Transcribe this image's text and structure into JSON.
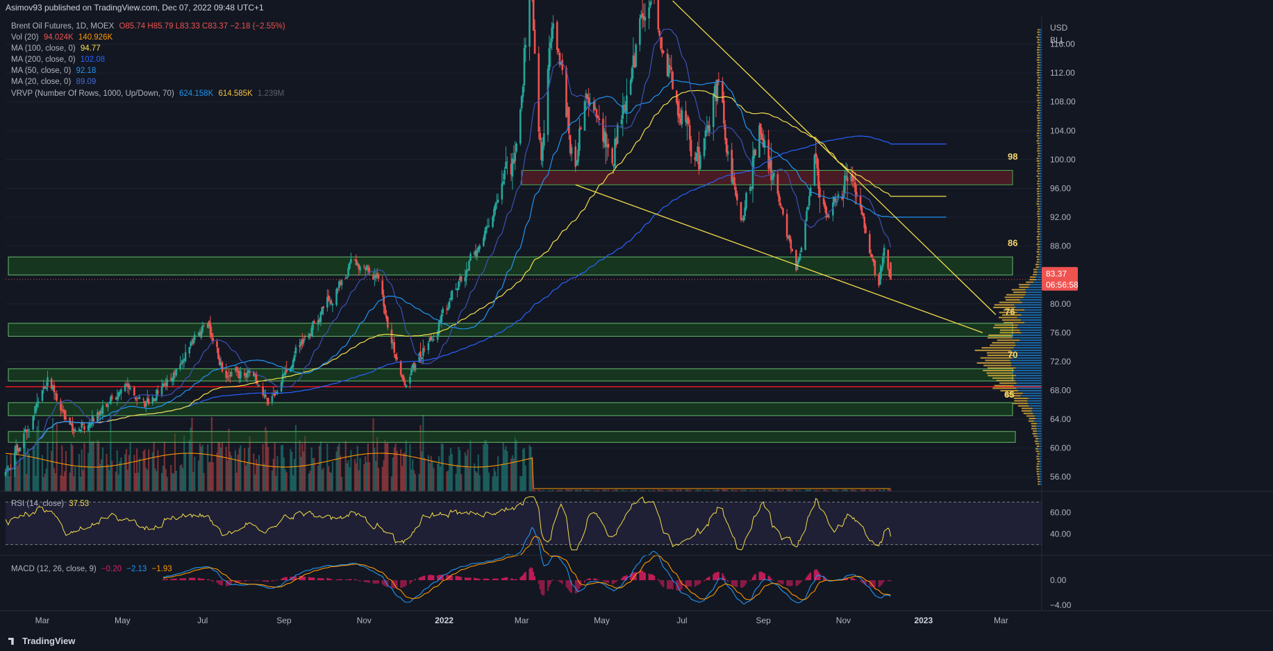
{
  "header": {
    "published_text": "Asimov93 published on TradingView.com, Dec 07, 2022 09:48 UTC+1"
  },
  "legend": {
    "symbol": "Brent Oil Futures, 1D, MOEX",
    "ohlc": "O85.74  H85.79  L83.33  C83.37  −2.18 (−2.55%)",
    "vol_label": "Vol (20)",
    "vol_values": [
      "94.024K",
      "140.926K"
    ],
    "ma100_label": "MA (100, close, 0)",
    "ma100_value": "94.77",
    "ma200_label": "MA (200, close, 0)",
    "ma200_value": "102.08",
    "ma50_label": "MA (50, close, 0)",
    "ma50_value": "92.18",
    "ma20_label": "MA (20, close, 0)",
    "ma20_value": "89.09",
    "vrvp_label": "VRVP (Number Of Rows, 1000, Up/Down, 70)",
    "vrvp_values": [
      "624.158K",
      "614.585K",
      "1.239M"
    ]
  },
  "rsi_legend": {
    "label": "RSI (14, close)",
    "value": "37.53"
  },
  "macd_legend": {
    "label": "MACD (12, 26, close, 9)",
    "values": [
      "−0.20",
      "−2.13",
      "−1.93"
    ]
  },
  "price_axis": {
    "currency": "USD",
    "unit": "BLL",
    "ticks": [
      "116.00",
      "112.00",
      "108.00",
      "104.00",
      "100.00",
      "96.00",
      "92.00",
      "88.00",
      "80.00",
      "76.00",
      "72.00",
      "68.00",
      "64.00",
      "60.00",
      "56.00"
    ],
    "last_price": "83.37",
    "countdown": "06:56:58"
  },
  "rsi_axis": {
    "ticks": [
      "60.00",
      "40.00"
    ]
  },
  "macd_axis": {
    "ticks": [
      "0.00",
      "−4.00"
    ]
  },
  "time_axis": {
    "labels": [
      "Mar",
      "May",
      "Jul",
      "Sep",
      "Nov",
      "2022",
      "Mar",
      "May",
      "Jul",
      "Sep",
      "Nov",
      "2023",
      "Mar"
    ]
  },
  "annotations": [
    "98",
    "86",
    "76",
    "70",
    "65"
  ],
  "branding": {
    "logo_text": "TradingView"
  },
  "colors": {
    "background": "#131722",
    "up": "#26a69a",
    "down": "#ef5350",
    "ma100": "#f5e04a",
    "ma200": "#2962ff",
    "ma50": "#2196f3",
    "ma20": "#3f51b5",
    "zone_green": "#1b5e20",
    "zone_red": "#4a1c22",
    "red_level": "#ff1a1a",
    "trendline": "#f5e04a",
    "rsi": "#f5e04a",
    "macd": "#2196f3",
    "signal": "#ff9800"
  },
  "chart_data": {
    "type": "candlestick",
    "title": "Brent Oil Futures, 1D, MOEX",
    "y_range": [
      54,
      120
    ],
    "x_range": [
      "2021-02",
      "2023-04"
    ],
    "price_path": [
      [
        "2021-02-01",
        56
      ],
      [
        "2021-03-05",
        69.5
      ],
      [
        "2021-03-25",
        62
      ],
      [
        "2021-05-05",
        68.5
      ],
      [
        "2021-05-20",
        66
      ],
      [
        "2021-07-05",
        77
      ],
      [
        "2021-07-20",
        69
      ],
      [
        "2021-08-05",
        71
      ],
      [
        "2021-08-20",
        65.5
      ],
      [
        "2021-09-15",
        75
      ],
      [
        "2021-10-25",
        86
      ],
      [
        "2021-11-10",
        84
      ],
      [
        "2021-11-26",
        72.5
      ],
      [
        "2021-12-02",
        69
      ],
      [
        "2021-12-30",
        78
      ],
      [
        "2022-02-01",
        90
      ],
      [
        "2022-02-25",
        100
      ],
      [
        "2022-03-08",
        127
      ],
      [
        "2022-03-16",
        99
      ],
      [
        "2022-03-24",
        121
      ],
      [
        "2022-04-11",
        98
      ],
      [
        "2022-04-19",
        109
      ],
      [
        "2022-05-10",
        102
      ],
      [
        "2022-06-08",
        124
      ],
      [
        "2022-06-21",
        112
      ],
      [
        "2022-07-14",
        99
      ],
      [
        "2022-07-29",
        110
      ],
      [
        "2022-08-16",
        92
      ],
      [
        "2022-08-29",
        105
      ],
      [
        "2022-09-26",
        84
      ],
      [
        "2022-10-10",
        98
      ],
      [
        "2022-10-20",
        92
      ],
      [
        "2022-11-07",
        98.5
      ],
      [
        "2022-11-28",
        82
      ],
      [
        "2022-12-02",
        89
      ],
      [
        "2022-12-07",
        83.37
      ]
    ],
    "last": {
      "open": 85.74,
      "high": 85.79,
      "low": 83.33,
      "close": 83.37,
      "change": -2.18,
      "change_pct": -2.55
    },
    "moving_averages": [
      {
        "name": "MA (100, close, 0)",
        "value": 94.77
      },
      {
        "name": "MA (200, close, 0)",
        "value": 102.08
      },
      {
        "name": "MA (50, close, 0)",
        "value": 92.18
      },
      {
        "name": "MA (20, close, 0)",
        "value": 89.09
      }
    ],
    "zones": [
      {
        "from": 96.5,
        "to": 98.5,
        "kind": "resistance"
      },
      {
        "from": 84,
        "to": 86.5,
        "kind": "support"
      },
      {
        "from": 75.5,
        "to": 77.3,
        "kind": "support"
      },
      {
        "from": 69.3,
        "to": 71,
        "kind": "support"
      },
      {
        "from": 64.5,
        "to": 66.3,
        "kind": "support"
      },
      {
        "from": 60.8,
        "to": 62.3,
        "kind": "support"
      }
    ],
    "horizontal_levels": [
      68.5
    ],
    "trendlines": [
      {
        "from": [
          "2022-06-24",
          122
        ],
        "to": [
          "2023-02-25",
          78.5
        ]
      },
      {
        "from": [
          "2022-04-11",
          96.5
        ],
        "to": [
          "2023-02-15",
          76
        ]
      }
    ],
    "rsi": {
      "period": 14,
      "value": 37.53,
      "bands": [
        70,
        30
      ],
      "range": [
        20,
        80
      ]
    },
    "macd": {
      "fast": 12,
      "slow": 26,
      "signal": 9,
      "values": [
        -0.2,
        -2.13,
        -1.93
      ]
    }
  }
}
